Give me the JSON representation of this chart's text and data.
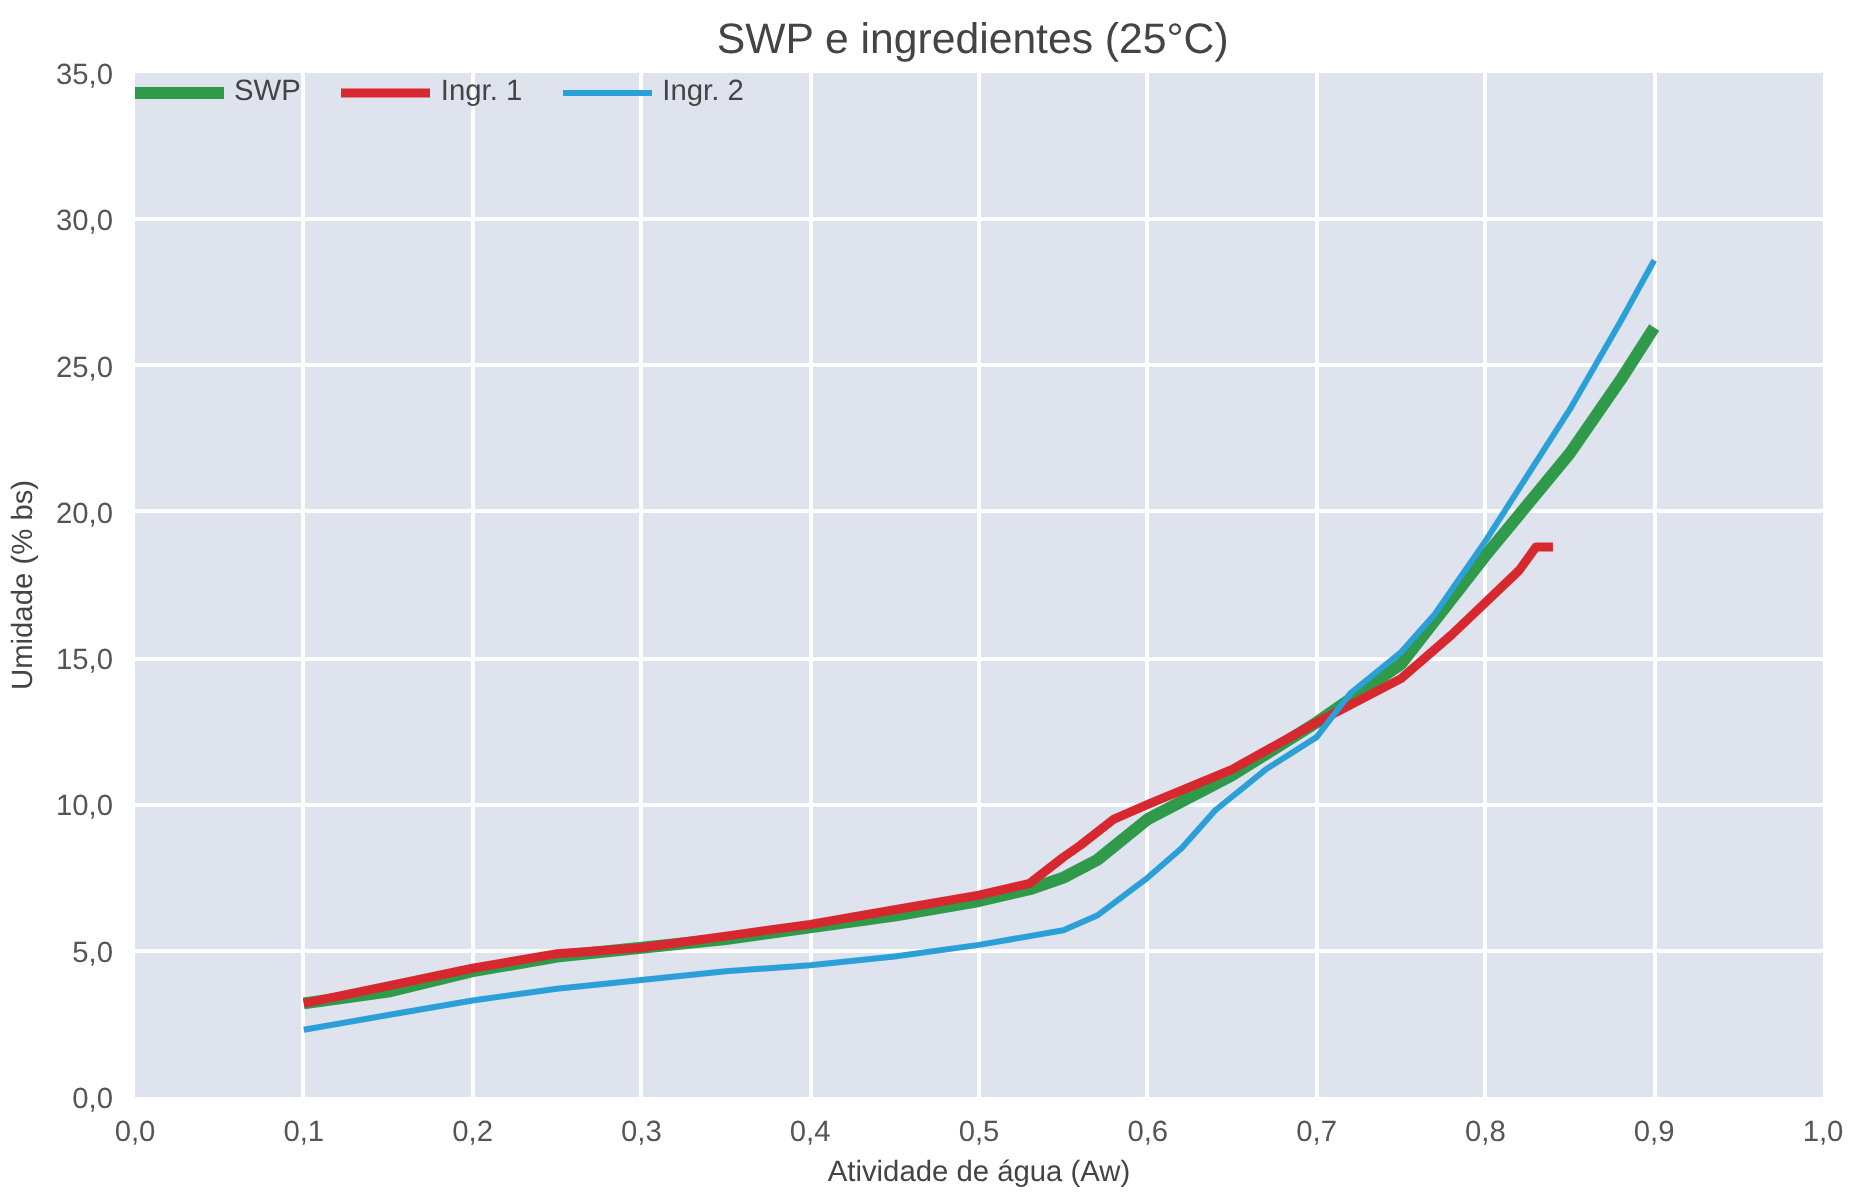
{
  "chart_data": {
    "type": "line",
    "title": "SWP e ingredientes  (25°C)",
    "xlabel": "Atividade de água (Aw)",
    "ylabel": "Umidade (% bs)",
    "legend": "top left",
    "grid": true,
    "line_style": "solid",
    "xlim": [
      0,
      1
    ],
    "ylim": [
      0,
      35
    ],
    "xticks": [
      {
        "value": 0,
        "label": "0,0"
      },
      {
        "value": 0.1,
        "label": "0,1"
      },
      {
        "value": 0.2,
        "label": "0,2"
      },
      {
        "value": 0.3,
        "label": "0,3"
      },
      {
        "value": 0.4,
        "label": "0,4"
      },
      {
        "value": 0.5,
        "label": "0,5"
      },
      {
        "value": 0.6,
        "label": "0,6"
      },
      {
        "value": 0.7,
        "label": "0,7"
      },
      {
        "value": 0.8,
        "label": "0,8"
      },
      {
        "value": 0.9,
        "label": "0,9"
      },
      {
        "value": 1,
        "label": "1,0"
      }
    ],
    "yticks": [
      {
        "value": 0,
        "label": "0,0"
      },
      {
        "value": 5,
        "label": "5,0"
      },
      {
        "value": 10,
        "label": "10,0"
      },
      {
        "value": 15,
        "label": "15,0"
      },
      {
        "value": 20,
        "label": "20,0"
      },
      {
        "value": 25,
        "label": "25,0"
      },
      {
        "value": 30,
        "label": "30,0"
      },
      {
        "value": 35,
        "label": "35,0"
      }
    ],
    "series": [
      {
        "name": "SWP",
        "color": "#2e9a4a",
        "x": [
          0.1,
          0.15,
          0.2,
          0.25,
          0.3,
          0.35,
          0.4,
          0.45,
          0.5,
          0.53,
          0.55,
          0.57,
          0.6,
          0.65,
          0.7,
          0.75,
          0.8,
          0.85,
          0.88,
          0.9
        ],
        "values": [
          3.2,
          3.6,
          4.3,
          4.8,
          5.1,
          5.4,
          5.8,
          6.2,
          6.7,
          7.1,
          7.5,
          8.1,
          9.5,
          11.0,
          12.8,
          14.8,
          18.5,
          22.0,
          24.5,
          26.3
        ]
      },
      {
        "name": "Ingr. 1",
        "color": "#d7282f",
        "x": [
          0.1,
          0.15,
          0.2,
          0.25,
          0.3,
          0.35,
          0.4,
          0.45,
          0.5,
          0.53,
          0.55,
          0.56,
          0.58,
          0.6,
          0.65,
          0.7,
          0.75,
          0.78,
          0.82,
          0.83,
          0.84
        ],
        "values": [
          3.2,
          3.8,
          4.4,
          4.9,
          5.1,
          5.5,
          5.9,
          6.4,
          6.9,
          7.3,
          8.2,
          8.6,
          9.5,
          10.0,
          11.2,
          12.8,
          14.3,
          15.8,
          18.0,
          18.8,
          18.8
        ]
      },
      {
        "name": "Ingr. 2",
        "color": "#2a9fd8",
        "x": [
          0.1,
          0.15,
          0.2,
          0.25,
          0.3,
          0.35,
          0.4,
          0.45,
          0.5,
          0.55,
          0.57,
          0.6,
          0.62,
          0.64,
          0.67,
          0.7,
          0.72,
          0.75,
          0.77,
          0.8,
          0.85,
          0.88,
          0.9
        ],
        "values": [
          2.3,
          2.8,
          3.3,
          3.7,
          4.0,
          4.3,
          4.5,
          4.8,
          5.2,
          5.7,
          6.2,
          7.5,
          8.5,
          9.8,
          11.2,
          12.3,
          13.8,
          15.2,
          16.5,
          19.0,
          23.5,
          26.5,
          28.6
        ]
      }
    ]
  }
}
